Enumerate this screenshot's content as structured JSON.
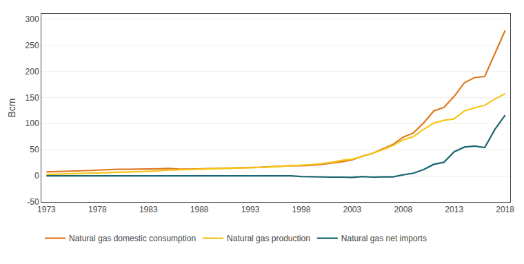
{
  "chart_data": {
    "type": "line",
    "x": [
      1973,
      1974,
      1975,
      1976,
      1977,
      1978,
      1979,
      1980,
      1981,
      1982,
      1983,
      1984,
      1985,
      1986,
      1987,
      1988,
      1989,
      1990,
      1991,
      1992,
      1993,
      1994,
      1995,
      1996,
      1997,
      1998,
      1999,
      2000,
      2001,
      2002,
      2003,
      2004,
      2005,
      2006,
      2007,
      2008,
      2009,
      2010,
      2011,
      2012,
      2013,
      2014,
      2015,
      2016,
      2017,
      2018
    ],
    "series": [
      {
        "name": "Natural gas domestic consumption",
        "color": "#e07820",
        "values": [
          7.5,
          8.0,
          8.5,
          9.0,
          10.0,
          11.0,
          12.0,
          12.5,
          12.5,
          12.5,
          13.0,
          13.5,
          14.0,
          13.0,
          13.0,
          13.5,
          14.0,
          14.0,
          14.5,
          15.0,
          16.0,
          16.5,
          17.5,
          18.5,
          19.5,
          19.5,
          20.0,
          22.0,
          24.5,
          27.0,
          30.5,
          37.5,
          43.0,
          52.0,
          60.0,
          74.0,
          82.0,
          101.0,
          124.0,
          131.0,
          152.0,
          178.0,
          188.0,
          190.0,
          235.0,
          278.0
        ]
      },
      {
        "name": "Natural gas production",
        "color": "#f5c518",
        "values": [
          2.5,
          3.0,
          3.5,
          4.0,
          5.0,
          5.5,
          6.0,
          6.5,
          7.0,
          7.5,
          8.5,
          9.5,
          11.0,
          11.5,
          12.0,
          12.5,
          13.0,
          13.5,
          14.0,
          14.5,
          15.5,
          16.0,
          17.0,
          18.0,
          19.5,
          20.5,
          21.5,
          23.5,
          26.0,
          29.5,
          32.0,
          37.0,
          43.0,
          50.0,
          58.0,
          69.0,
          75.0,
          89.0,
          101.0,
          106.0,
          109.0,
          124.0,
          130.0,
          135.0,
          147.0,
          157.0
        ]
      },
      {
        "name": "Natural gas net imports",
        "color": "#1a6672",
        "values": [
          0.0,
          0.0,
          0.0,
          0.0,
          0.0,
          0.0,
          0.0,
          0.0,
          0.0,
          0.0,
          0.0,
          0.0,
          0.0,
          0.0,
          0.0,
          0.0,
          0.0,
          0.0,
          0.0,
          0.0,
          0.0,
          0.0,
          0.0,
          0.0,
          0.0,
          -1.5,
          -2.0,
          -2.0,
          -2.5,
          -2.5,
          -3.0,
          -1.5,
          -2.5,
          -2.0,
          -2.0,
          2.0,
          5.0,
          12.0,
          22.0,
          26.0,
          46.0,
          55.0,
          57.0,
          54.0,
          89.0,
          116.0
        ]
      }
    ],
    "ylabel": "Bcm",
    "xlim": [
      1972.5,
      2018.5
    ],
    "xticks": [
      1973,
      1978,
      1983,
      1988,
      1993,
      1998,
      2003,
      2008,
      2013,
      2018
    ],
    "ylim": [
      -50,
      310
    ],
    "yticks": [
      -50,
      0,
      50,
      100,
      150,
      200,
      250,
      300
    ],
    "grid": true,
    "legend": "lower left"
  }
}
